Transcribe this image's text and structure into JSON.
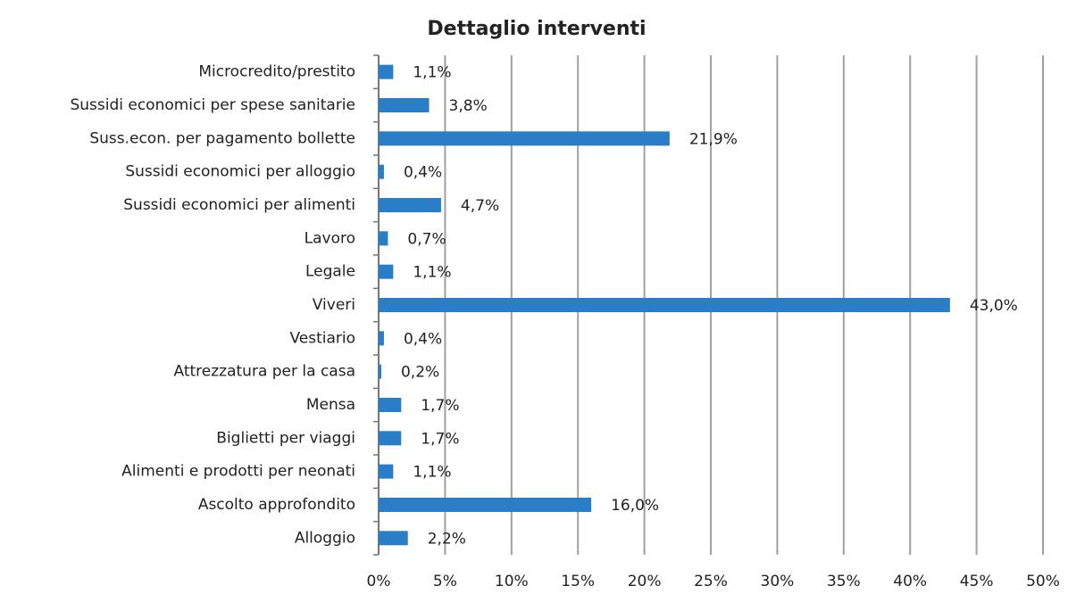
{
  "chart_data": {
    "type": "bar",
    "orientation": "horizontal",
    "title": "Dettaglio interventi",
    "categories": [
      "Microcredito/prestito",
      "Sussidi economici per spese sanitarie",
      "Suss.econ. per pagamento bollette",
      "Sussidi economici per alloggio",
      "Sussidi economici per alimenti",
      "Lavoro",
      "Legale",
      "Viveri",
      "Vestiario",
      "Attrezzatura per la casa",
      "Mensa",
      "Biglietti per viaggi",
      "Alimenti e prodotti per neonati",
      "Ascolto approfondito",
      "Alloggio"
    ],
    "values": [
      1.1,
      3.8,
      21.9,
      0.4,
      4.7,
      0.7,
      1.1,
      43.0,
      0.4,
      0.2,
      1.7,
      1.7,
      1.1,
      16.0,
      2.2
    ],
    "value_labels": [
      "1,1%",
      "3,8%",
      "21,9%",
      "0,4%",
      "4,7%",
      "0,7%",
      "1,1%",
      "43,0%",
      "0,4%",
      "0,2%",
      "1,7%",
      "1,7%",
      "1,1%",
      "16,0%",
      "2,2%"
    ],
    "color": "#2a7ec8",
    "xlim": [
      0,
      50
    ],
    "xticks": [
      {
        "value": 0,
        "label": "0%"
      },
      {
        "value": 5,
        "label": "5%"
      },
      {
        "value": 10,
        "label": "10%"
      },
      {
        "value": 15,
        "label": "15%"
      },
      {
        "value": 20,
        "label": "20%"
      },
      {
        "value": 25,
        "label": "25%"
      },
      {
        "value": 30,
        "label": "30%"
      },
      {
        "value": 35,
        "label": "35%"
      },
      {
        "value": 40,
        "label": "40%"
      },
      {
        "value": 45,
        "label": "45%"
      },
      {
        "value": 50,
        "label": "50%"
      }
    ],
    "grid": true
  }
}
